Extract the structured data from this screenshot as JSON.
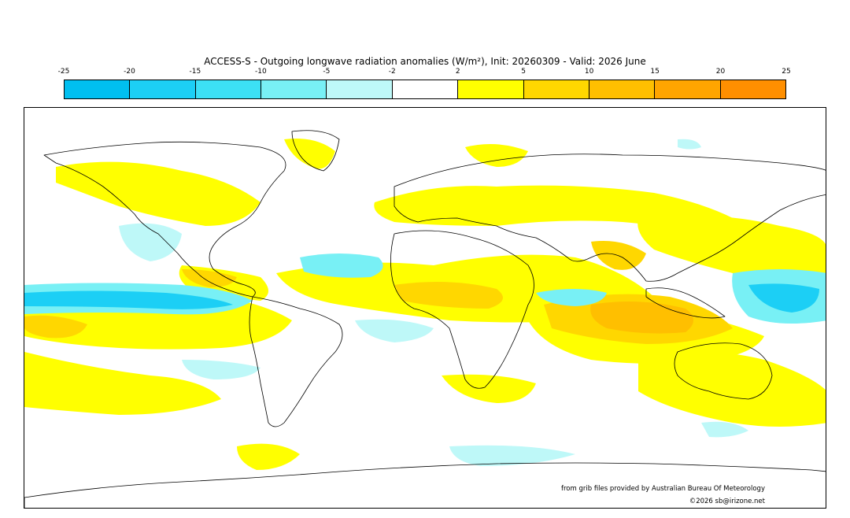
{
  "title": "ACCESS-S - Outgoing longwave radiation anomalies (W/m²), Init: 20260309 - Valid: 2026 June",
  "legend": {
    "ticks": [
      "-25",
      "-20",
      "-15",
      "-10",
      "-5",
      "-2",
      "2",
      "5",
      "10",
      "15",
      "20",
      "25"
    ],
    "colors": [
      "#00bff0",
      "#1ccff5",
      "#3ce0f5",
      "#78f0f5",
      "#bef8f8",
      "#ffffff",
      "#ffff00",
      "#ffd700",
      "#ffbf00",
      "#ffa500",
      "#ff8f00"
    ]
  },
  "credits": {
    "source": "from grib files provided by Australian Bureau Of Meteorology",
    "copyright": "©2026 sb@irizone.net"
  }
}
